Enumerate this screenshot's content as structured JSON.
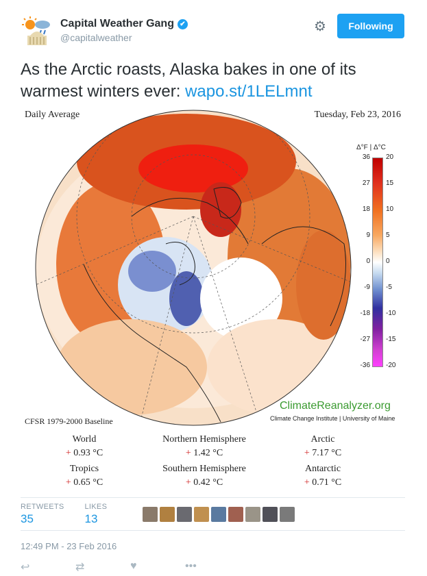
{
  "header": {
    "display_name": "Capital Weather Gang",
    "handle": "@capitalweather",
    "follow_label": "Following"
  },
  "tweet": {
    "text": "As the Arctic roasts, Alaska bakes in one of its warmest winters ever: ",
    "link_text": "wapo.st/1LELmnt"
  },
  "map": {
    "title_left": "Daily Average",
    "title_right": "Tuesday, Feb 23, 2016",
    "colorbar_header": "Δ°F | Δ°C",
    "colorbar_f": [
      "36",
      "27",
      "18",
      "9",
      "0",
      "-9",
      "-18",
      "-27",
      "-36"
    ],
    "colorbar_c": [
      "20",
      "15",
      "10",
      "5",
      "0",
      "-5",
      "-10",
      "-15",
      "-20"
    ],
    "logo_text": "ClimateReanalyzer.org",
    "logo_sub": "Climate Change Institute | University of Maine",
    "baseline": "CFSR 1979-2000 Baseline",
    "stats": [
      {
        "label": "World",
        "sign": "+",
        "value": "0.93 °C"
      },
      {
        "label": "Northern Hemisphere",
        "sign": "+",
        "value": "1.42 °C"
      },
      {
        "label": "Arctic",
        "sign": "+",
        "value": "7.17 °C"
      },
      {
        "label": "Tropics",
        "sign": "+",
        "value": "0.65 °C"
      },
      {
        "label": "Southern Hemisphere",
        "sign": "+",
        "value": "0.42 °C"
      },
      {
        "label": "Antarctic",
        "sign": "+",
        "value": "0.71 °C"
      }
    ]
  },
  "engagement": {
    "retweets_label": "RETWEETS",
    "retweets_count": "35",
    "likes_label": "LIKES",
    "likes_count": "13"
  },
  "timestamp": "12:49 PM - 23 Feb 2016",
  "icons": {
    "verified": "verified-badge-icon",
    "settings": "gear-icon",
    "reply": "reply-icon",
    "retweet": "retweet-icon",
    "like": "heart-icon",
    "more": "more-icon"
  },
  "colors": {
    "accent": "#1da1f2",
    "link": "#1b95e0",
    "positive": "#d02020"
  }
}
